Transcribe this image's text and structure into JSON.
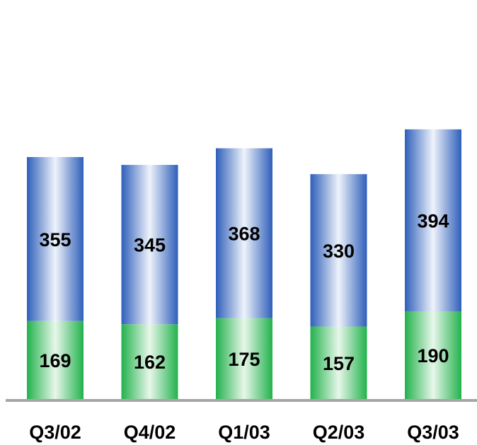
{
  "chart_data": {
    "type": "bar",
    "stacked": true,
    "categories": [
      "Q3/02",
      "Q4/02",
      "Q1/03",
      "Q2/03",
      "Q3/03"
    ],
    "series": [
      {
        "values": [
          169,
          162,
          175,
          157,
          190
        ],
        "color_edge": "#22b24c",
        "color_center": "#e8f7ea"
      },
      {
        "values": [
          355,
          345,
          368,
          330,
          394
        ],
        "color_edge": "#2f5fba",
        "color_center": "#eef3fb"
      }
    ],
    "title": "",
    "xlabel": "",
    "ylabel": "",
    "ylim": [
      0,
      600
    ],
    "grid": false,
    "legend": "none",
    "axis_color": "#a6a6a6"
  }
}
